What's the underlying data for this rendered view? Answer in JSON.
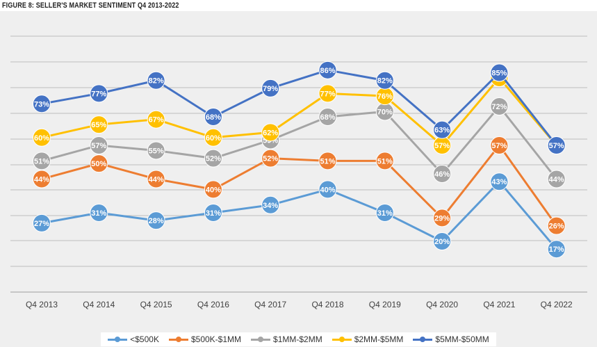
{
  "title": "FIGURE 8: SELLER'S MARKET SENTIMENT Q4 2013-2022",
  "chart_data": {
    "type": "line",
    "title": "FIGURE 8: SELLER'S MARKET SENTIMENT Q4 2013-2022",
    "categories": [
      "Q4 2013",
      "Q4 2014",
      "Q4 2015",
      "Q4 2016",
      "Q4 2017",
      "Q4 2018",
      "Q4 2019",
      "Q4 2020",
      "Q4 2021",
      "Q4 2022"
    ],
    "value_format": "percent",
    "grid": true,
    "legend_position": "bottom",
    "series": [
      {
        "name": "<$500K",
        "color": "#5b9bd5",
        "values": [
          27,
          31,
          28,
          31,
          34,
          40,
          31,
          20,
          43,
          17
        ]
      },
      {
        "name": "$500K-$1MM",
        "color": "#ed7d31",
        "values": [
          44,
          50,
          44,
          40,
          52,
          51,
          51,
          29,
          57,
          26
        ]
      },
      {
        "name": "$1MM-$2MM",
        "color": "#a5a5a5",
        "values": [
          51,
          57,
          55,
          52,
          59,
          68,
          70,
          46,
          72,
          44
        ]
      },
      {
        "name": "$2MM-$5MM",
        "color": "#ffc000",
        "values": [
          60,
          65,
          67,
          60,
          62,
          77,
          76,
          57,
          83,
          57
        ]
      },
      {
        "name": "$5MM-$50MM",
        "color": "#4472c4",
        "values": [
          73,
          77,
          82,
          68,
          79,
          86,
          82,
          63,
          85,
          57
        ]
      }
    ]
  }
}
